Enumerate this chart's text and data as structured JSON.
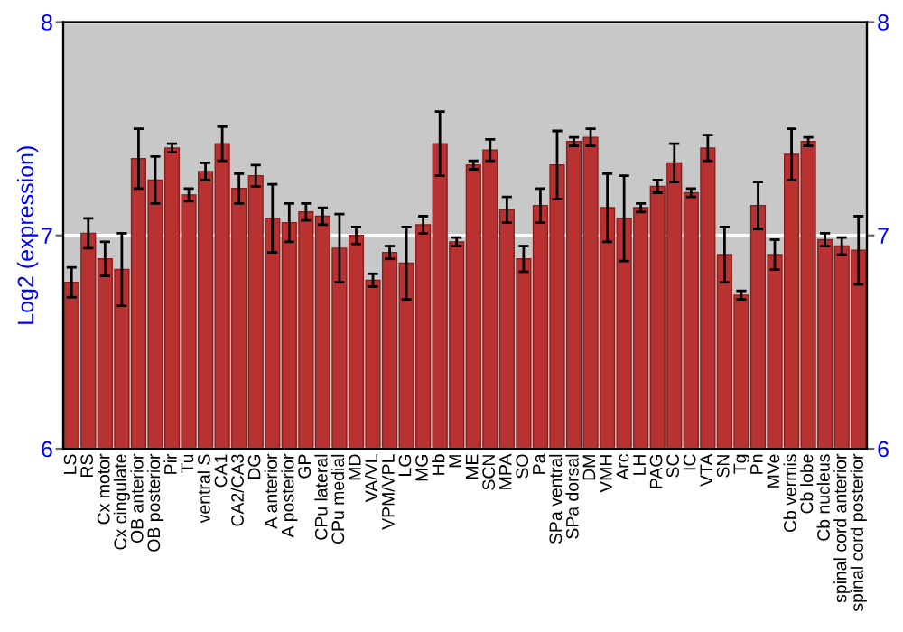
{
  "chart_data": {
    "type": "bar",
    "ylabel": "Log2 (expression)",
    "categories": [
      "LS",
      "RS",
      "Cx motor",
      "Cx cingulate",
      "OB anterior",
      "OB posterior",
      "Pir",
      "Tu",
      "ventral S",
      "CA1",
      "CA2/CA3",
      "DG",
      "A anterior",
      "A posterior",
      "GP",
      "CPu lateral",
      "CPu medial",
      "MD",
      "VA/VL",
      "VPM/VPL",
      "LG",
      "MG",
      "Hb",
      "M",
      "ME",
      "SCN",
      "MPA",
      "SO",
      "Pa",
      "SPa ventral",
      "SPa dorsal",
      "DM",
      "VMH",
      "Arc",
      "LH",
      "PAG",
      "SC",
      "IC",
      "VTA",
      "SN",
      "Tg",
      "Pn",
      "MVe",
      "Cb vermis",
      "Cb lobe",
      "Cb nucleus",
      "spinal cord anterior",
      "spinal cord posterior"
    ],
    "values": [
      6.78,
      7.01,
      6.89,
      6.84,
      7.36,
      7.26,
      7.41,
      7.19,
      7.3,
      7.43,
      7.22,
      7.28,
      7.08,
      7.06,
      7.11,
      7.09,
      6.94,
      7.0,
      6.79,
      6.92,
      6.87,
      7.05,
      7.43,
      6.97,
      7.33,
      7.4,
      7.12,
      6.89,
      7.14,
      7.33,
      7.44,
      7.46,
      7.13,
      7.08,
      7.13,
      7.23,
      7.34,
      7.2,
      7.41,
      6.91,
      6.72,
      7.14,
      6.91,
      7.38,
      7.44,
      6.98,
      6.95,
      6.93
    ],
    "errors": [
      0.07,
      0.07,
      0.08,
      0.17,
      0.14,
      0.11,
      0.02,
      0.03,
      0.04,
      0.08,
      0.07,
      0.05,
      0.16,
      0.09,
      0.04,
      0.04,
      0.16,
      0.04,
      0.03,
      0.03,
      0.17,
      0.04,
      0.15,
      0.02,
      0.02,
      0.05,
      0.06,
      0.06,
      0.08,
      0.16,
      0.02,
      0.04,
      0.16,
      0.2,
      0.02,
      0.03,
      0.09,
      0.02,
      0.06,
      0.13,
      0.02,
      0.11,
      0.07,
      0.12,
      0.02,
      0.03,
      0.04,
      0.16
    ],
    "color": "#b83232",
    "ylim": [
      6,
      8
    ],
    "yticks": [
      6,
      7,
      8
    ],
    "y2lim": [
      6,
      8
    ],
    "y2ticks": [
      6,
      7,
      8
    ],
    "grid": "y",
    "legend": false
  }
}
